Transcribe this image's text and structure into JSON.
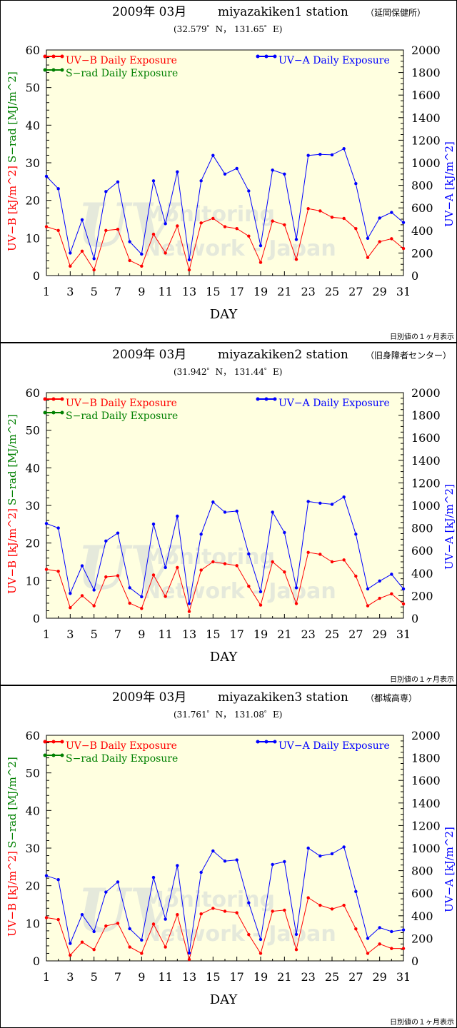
{
  "chart_data": [
    {
      "type": "line",
      "title": "2009年 03月",
      "station": "miyazakiken1 station",
      "location_jp": "（延岡保健所）",
      "coords": "(32.579゜N， 131.65゜E)",
      "footnote": "日別値の１ヶ月表示",
      "xlabel": "DAY",
      "ylabel_left_red": "UV−B [kJ/m^2]",
      "ylabel_left_green": "S−rad [MJ/m^2]",
      "ylabel_right": "UV−A [kJ/m^2]",
      "legend": {
        "uvb": "UV−B Daily Exposure",
        "srad": "S−rad Daily Exposure",
        "uva": "UV−A  Daily  Exposure"
      },
      "watermark": {
        "uv": "UV",
        "line1": "Monitoring",
        "line2": "Network - Japan"
      },
      "x": [
        1,
        2,
        3,
        4,
        5,
        6,
        7,
        8,
        9,
        10,
        11,
        12,
        13,
        14,
        15,
        16,
        17,
        18,
        19,
        20,
        21,
        22,
        23,
        24,
        25,
        26,
        27,
        28,
        29,
        30,
        31
      ],
      "xticks": [
        "1",
        "3",
        "5",
        "7",
        "9",
        "11",
        "13",
        "15",
        "17",
        "19",
        "21",
        "23",
        "25",
        "27",
        "29",
        "31"
      ],
      "ylim_left": [
        0,
        60
      ],
      "yticks_left": [
        "0",
        "10",
        "20",
        "30",
        "40",
        "50",
        "60"
      ],
      "ylim_right": [
        0,
        2000
      ],
      "yticks_right": [
        "0",
        "200",
        "400",
        "600",
        "800",
        "1000",
        "1200",
        "1400",
        "1600",
        "1800",
        "2000"
      ],
      "series": [
        {
          "name": "UV−B Daily Exposure",
          "axis": "left",
          "color": "#ff0000",
          "values": [
            13.0,
            12.0,
            2.5,
            6.5,
            1.5,
            12.0,
            12.3,
            4.0,
            2.5,
            11.0,
            6.0,
            13.2,
            1.5,
            14.0,
            15.2,
            13.0,
            12.5,
            10.5,
            3.5,
            14.5,
            13.5,
            4.3,
            17.8,
            17.2,
            15.5,
            15.2,
            12.5,
            4.8,
            9.0,
            9.8,
            7.2
          ]
        },
        {
          "name": "UV−A  Daily  Exposure",
          "axis": "right",
          "color": "#0000ff",
          "values": [
            880,
            770,
            200,
            495,
            150,
            745,
            830,
            300,
            190,
            840,
            460,
            920,
            140,
            840,
            1065,
            900,
            950,
            750,
            265,
            935,
            900,
            320,
            1065,
            1075,
            1070,
            1125,
            815,
            330,
            510,
            560,
            470
          ]
        }
      ]
    },
    {
      "type": "line",
      "title": "2009年 03月",
      "station": "miyazakiken2 station",
      "location_jp": "（旧身障者センター）",
      "coords": "(31.942゜N， 131.44゜E)",
      "footnote": "日別値の１ヶ月表示",
      "xlabel": "DAY",
      "ylabel_left_red": "UV−B [kJ/m^2]",
      "ylabel_left_green": "S−rad [MJ/m^2]",
      "ylabel_right": "UV−A [kJ/m^2]",
      "legend": {
        "uvb": "UV−B Daily Exposure",
        "srad": "S−rad Daily Exposure",
        "uva": "UV−A  Daily  Exposure"
      },
      "watermark": {
        "uv": "UV",
        "line1": "Monitoring",
        "line2": "Network - Japan"
      },
      "x": [
        1,
        2,
        3,
        4,
        5,
        6,
        7,
        8,
        9,
        10,
        11,
        12,
        13,
        14,
        15,
        16,
        17,
        18,
        19,
        20,
        21,
        22,
        23,
        24,
        25,
        26,
        27,
        28,
        29,
        30,
        31
      ],
      "xticks": [
        "1",
        "3",
        "5",
        "7",
        "9",
        "11",
        "13",
        "15",
        "17",
        "19",
        "21",
        "23",
        "25",
        "27",
        "29",
        "31"
      ],
      "ylim_left": [
        0,
        60
      ],
      "yticks_left": [
        "0",
        "10",
        "20",
        "30",
        "40",
        "50",
        "60"
      ],
      "ylim_right": [
        0,
        2000
      ],
      "yticks_right": [
        "0",
        "200",
        "400",
        "600",
        "800",
        "1000",
        "1200",
        "1400",
        "1600",
        "1800",
        "2000"
      ],
      "series": [
        {
          "name": "UV−B Daily Exposure",
          "axis": "left",
          "color": "#ff0000",
          "values": [
            13.0,
            12.5,
            2.8,
            6.0,
            3.3,
            11.0,
            11.3,
            4.0,
            2.6,
            11.5,
            5.8,
            13.5,
            1.8,
            12.8,
            15.0,
            14.5,
            14.0,
            8.5,
            3.5,
            15.0,
            12.3,
            3.9,
            17.5,
            17.0,
            15.0,
            15.5,
            11.2,
            3.3,
            5.3,
            6.5,
            3.8
          ]
        },
        {
          "name": "UV−A  Daily  Exposure",
          "axis": "right",
          "color": "#0000ff",
          "values": [
            840,
            800,
            220,
            465,
            250,
            685,
            755,
            270,
            190,
            835,
            450,
            905,
            130,
            745,
            1030,
            940,
            950,
            570,
            235,
            940,
            760,
            270,
            1035,
            1020,
            1010,
            1075,
            745,
            260,
            330,
            390,
            260
          ]
        }
      ]
    },
    {
      "type": "line",
      "title": "2009年 03月",
      "station": "miyazakiken3 station",
      "location_jp": "（都城高専）",
      "coords": "(31.761゜N， 131.08゜E)",
      "footnote": "日別値の１ヶ月表示",
      "xlabel": "DAY",
      "ylabel_left_red": "UV−B [kJ/m^2]",
      "ylabel_left_green": "S−rad [MJ/m^2]",
      "ylabel_right": "UV−A [kJ/m^2]",
      "legend": {
        "uvb": "UV−B Daily Exposure",
        "srad": "S−rad Daily Exposure",
        "uva": "UV−A  Daily  Exposure"
      },
      "watermark": {
        "uv": "UV",
        "line1": "Monitoring",
        "line2": "Network - Japan"
      },
      "x": [
        1,
        2,
        3,
        4,
        5,
        6,
        7,
        8,
        9,
        10,
        11,
        12,
        13,
        14,
        15,
        16,
        17,
        18,
        19,
        20,
        21,
        22,
        23,
        24,
        25,
        26,
        27,
        28,
        29,
        30,
        31
      ],
      "xticks": [
        "1",
        "3",
        "5",
        "7",
        "9",
        "11",
        "13",
        "15",
        "17",
        "19",
        "21",
        "23",
        "25",
        "27",
        "29",
        "31"
      ],
      "ylim_left": [
        0,
        60
      ],
      "yticks_left": [
        "0",
        "10",
        "20",
        "30",
        "40",
        "50",
        "60"
      ],
      "ylim_right": [
        0,
        2000
      ],
      "yticks_right": [
        "0",
        "200",
        "400",
        "600",
        "800",
        "1000",
        "1200",
        "1400",
        "1600",
        "1800",
        "2000"
      ],
      "series": [
        {
          "name": "UV−B Daily Exposure",
          "axis": "left",
          "color": "#ff0000",
          "values": [
            11.5,
            11.0,
            1.5,
            5.0,
            3.0,
            9.3,
            10.0,
            3.7,
            2.0,
            9.8,
            3.7,
            12.3,
            0.4,
            12.5,
            14.0,
            13.2,
            12.8,
            7.0,
            2.0,
            13.2,
            13.5,
            3.0,
            16.8,
            14.8,
            13.8,
            14.8,
            8.5,
            2.0,
            4.5,
            3.3,
            3.3
          ]
        },
        {
          "name": "UV−A  Daily  Exposure",
          "axis": "right",
          "color": "#0000ff",
          "values": [
            755,
            720,
            155,
            410,
            260,
            610,
            700,
            285,
            185,
            740,
            370,
            845,
            70,
            785,
            975,
            885,
            895,
            515,
            190,
            855,
            880,
            235,
            1000,
            930,
            950,
            1010,
            615,
            200,
            295,
            260,
            275
          ]
        }
      ]
    }
  ]
}
